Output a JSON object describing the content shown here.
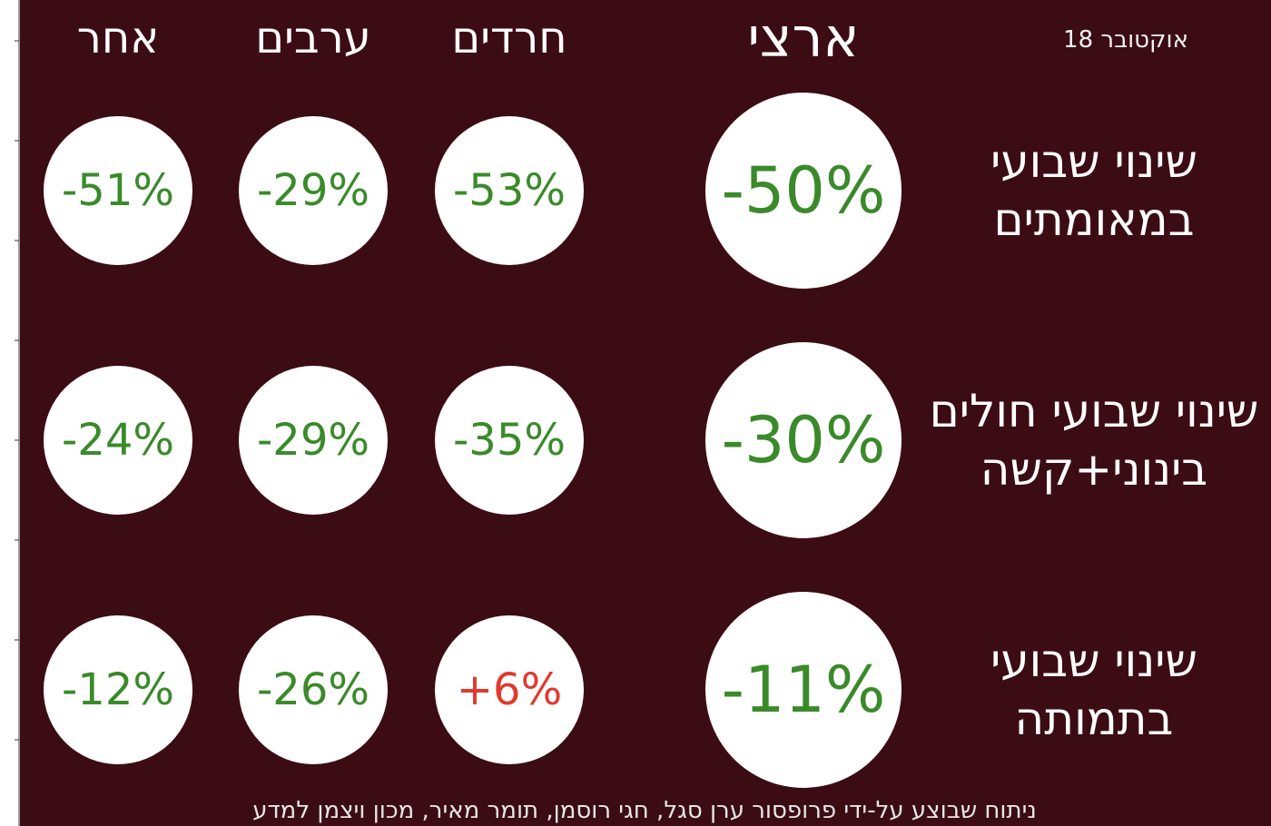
{
  "header": {
    "date": "אוקטובר 18"
  },
  "columns": [
    "ארצי",
    "חרדים",
    "ערבים",
    "אחר"
  ],
  "rows": [
    {
      "label": [
        "שינוי שבועי",
        "במאומתים"
      ],
      "cells": [
        {
          "text": "-50%",
          "color": "#3a8a2a"
        },
        {
          "text": "-53%",
          "color": "#3a8a2a"
        },
        {
          "text": "-29%",
          "color": "#3a8a2a"
        },
        {
          "text": "-51%",
          "color": "#3a8a2a"
        }
      ]
    },
    {
      "label": [
        "שינוי שבועי חולים",
        "בינוני+קשה"
      ],
      "cells": [
        {
          "text": "-30%",
          "color": "#3a8a2a"
        },
        {
          "text": "-35%",
          "color": "#3a8a2a"
        },
        {
          "text": "-29%",
          "color": "#3a8a2a"
        },
        {
          "text": "-24%",
          "color": "#3a8a2a"
        }
      ]
    },
    {
      "label": [
        "שינוי שבועי",
        "בתמותה"
      ],
      "cells": [
        {
          "text": "-11%",
          "color": "#3a8a2a"
        },
        {
          "text": "+6%",
          "color": "#e03a2e"
        },
        {
          "text": "-26%",
          "color": "#3a8a2a"
        },
        {
          "text": "-12%",
          "color": "#3a8a2a"
        }
      ]
    }
  ],
  "footer": "ניתוח שבוצע על-ידי פרופסור ערן סגל, חגי רוסמן, תומר מאיר, מכון ויצמן למדע"
}
